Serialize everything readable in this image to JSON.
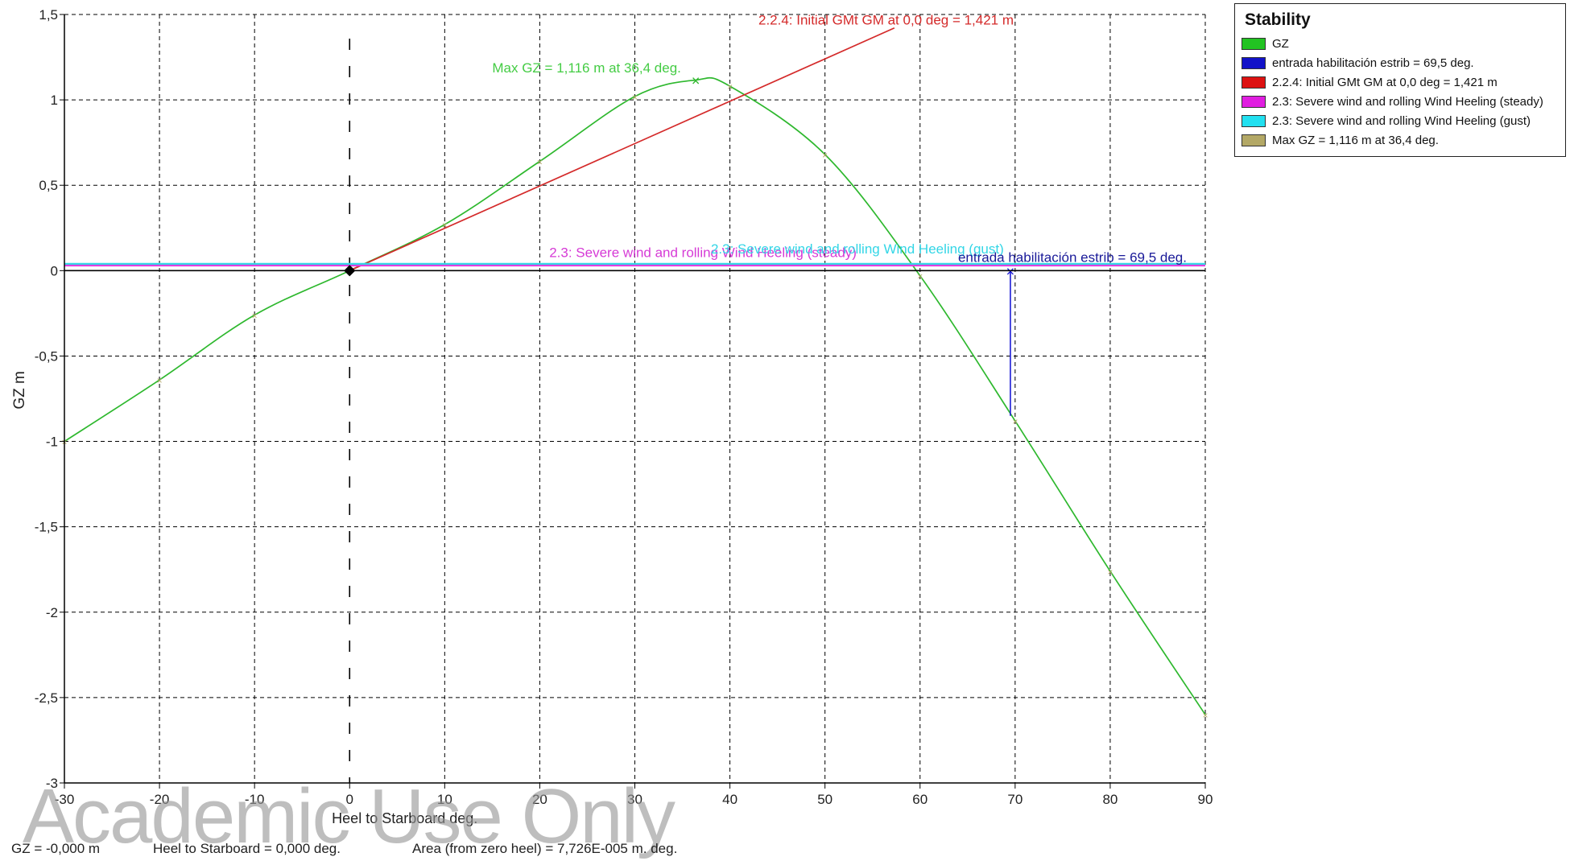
{
  "chart_data": {
    "type": "line",
    "ylabel": "GZ  m",
    "xlabel": "Heel to Starboard   deg.",
    "xlim": [
      -30,
      90
    ],
    "ylim": [
      -3,
      1.5
    ],
    "x_ticks": [
      -30,
      -20,
      -10,
      0,
      10,
      20,
      30,
      40,
      50,
      60,
      70,
      80,
      90
    ],
    "x_tick_labels": [
      "-30",
      "-20",
      "-10",
      "0",
      "10",
      "20",
      "30",
      "40",
      "50",
      "60",
      "70",
      "80",
      "90"
    ],
    "y_ticks": [
      1.5,
      1,
      0.5,
      0,
      -0.5,
      -1,
      -1.5,
      -2,
      -2.5,
      -3
    ],
    "y_tick_labels": [
      "1,5",
      "1",
      "0,5",
      "0",
      "-0,5",
      "-1",
      "-1,5",
      "-2",
      "-2,5",
      "-3"
    ],
    "grid": true,
    "legend_position": "top-right-outside",
    "series": [
      {
        "name": "GZ",
        "color": "#2eb82e",
        "x": [
          -30,
          -20,
          -10,
          0,
          10,
          20,
          30,
          36.4,
          40,
          50,
          60,
          70,
          80,
          90
        ],
        "y": [
          -1.0,
          -0.64,
          -0.26,
          0.0,
          0.27,
          0.64,
          1.02,
          1.116,
          1.08,
          0.68,
          -0.03,
          -0.88,
          -1.76,
          -2.6
        ]
      },
      {
        "name": "2.2.4: Initial GMt GM at 0,0 deg = 1,421 m",
        "color": "#d42a2a",
        "x": [
          0,
          57.3
        ],
        "y": [
          0,
          1.421
        ]
      },
      {
        "name": "2.3: Severe wind and rolling Wind Heeling (steady)",
        "color": "#e040e0",
        "x": [
          -30,
          90
        ],
        "y": [
          0.03,
          0.03
        ]
      },
      {
        "name": "2.3: Severe wind and rolling Wind Heeling (gust)",
        "color": "#33d6e6",
        "x": [
          -30,
          90
        ],
        "y": [
          0.04,
          0.04
        ]
      },
      {
        "name": "entrada habilitación estrib = 69,5 deg.",
        "color": "#1a1ad6",
        "x": [
          69.5,
          69.5
        ],
        "y": [
          0,
          -0.85
        ]
      }
    ],
    "annotations": [
      {
        "text": "2.2.4: Initial GMt GM at 0,0 deg = 1,421 m",
        "x": 43,
        "y": 1.44,
        "color": "#d42a2a"
      },
      {
        "text": "Max GZ = 1,116 m at 36,4 deg.",
        "x": 15,
        "y": 1.16,
        "color": "#44cc44"
      },
      {
        "text": "2.3: Severe wind and rolling Wind Heeling (steady)",
        "x": 21,
        "y": 0.08,
        "color": "#d63ad6"
      },
      {
        "text": "2.3: Severe wind and rolling Wind Heeling (gust)",
        "x": 38,
        "y": 0.1,
        "color": "#33d6e6"
      },
      {
        "text": "entrada habilitación estrib = 69,5 deg.",
        "x": 64,
        "y": 0.05,
        "color": "#1a1a99"
      }
    ],
    "max_marker": {
      "x": 36.4,
      "y": 1.116
    },
    "origin_marker": {
      "x": 0,
      "y": 0
    },
    "angle_marker": {
      "x": 69.5,
      "y": 0
    }
  },
  "legend": {
    "title": "Stability",
    "items": [
      {
        "label": "GZ",
        "color": "#22c322"
      },
      {
        "label": "entrada habilitación estrib = 69,5 deg.",
        "color": "#1212c8"
      },
      {
        "label": "2.2.4: Initial GMt GM at 0,0 deg = 1,421 m",
        "color": "#dd1111"
      },
      {
        "label": "2.3: Severe wind and rolling Wind Heeling (steady)",
        "color": "#e01ee0"
      },
      {
        "label": "2.3: Severe wind and rolling Wind Heeling (gust)",
        "color": "#22e0f0"
      },
      {
        "label": "Max GZ = 1,116 m at 36,4 deg.",
        "color": "#b3a866"
      }
    ]
  },
  "status": {
    "gz": "GZ =  -0,000 m",
    "heel": "Heel to Starboard =  0,000  deg.",
    "area": "Area (from zero heel) = 7,726E-005 m. deg."
  },
  "watermark": "Academic Use Only"
}
